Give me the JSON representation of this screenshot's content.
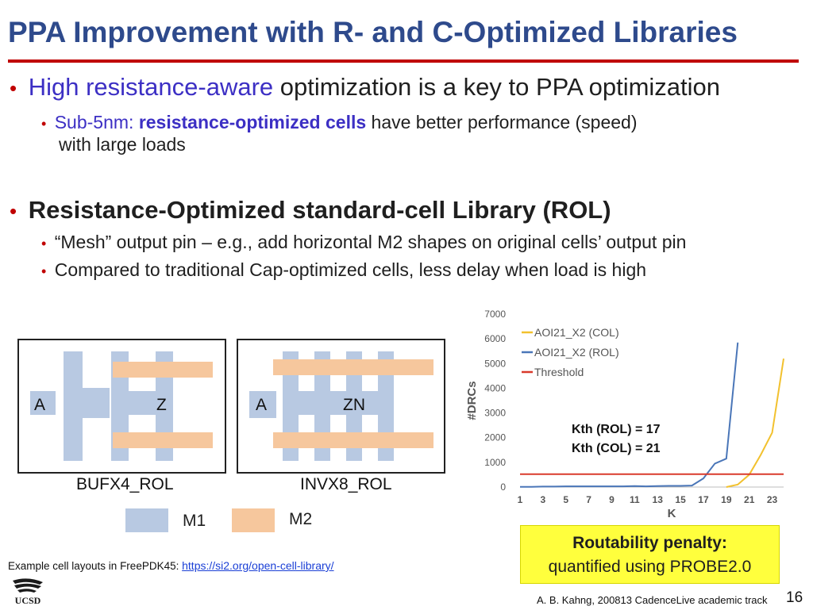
{
  "title": "PPA Improvement with R- and C-Optimized Libraries",
  "bullets": {
    "b1": {
      "highlight": "High resistance-aware",
      "rest": " optimization is a key to PPA optimization"
    },
    "b1_sub": {
      "prefix": "Sub-5nm: ",
      "highlight": "resistance-optimized cells",
      "rest": " have better performance (speed)",
      "line2": "with large loads"
    },
    "b2": {
      "text": "Resistance-Optimized standard-cell Library (ROL)"
    },
    "b2_sub1": "“Mesh” output pin – e.g., add horizontal M2 shapes on original cells’ output pin",
    "b2_sub2": "Compared to traditional Cap-optimized cells, less delay when load is high"
  },
  "bullet_glyph": "•",
  "cells": {
    "left": {
      "pin_in": "A",
      "pin_out": "Z",
      "name": "BUFX4_ROL"
    },
    "right": {
      "pin_in": "A",
      "pin_out": "ZN",
      "name": "INVX8_ROL"
    }
  },
  "legend": {
    "m1": "M1",
    "m2": "M2",
    "m1_color": "#b8c9e2",
    "m2_color": "#f6c79d"
  },
  "chart_data": {
    "type": "line",
    "xlabel": "K",
    "ylabel": "#DRCs",
    "x_ticks": [
      1,
      3,
      5,
      7,
      9,
      11,
      13,
      15,
      17,
      19,
      21,
      23
    ],
    "y_ticks": [
      0,
      1000,
      2000,
      3000,
      4000,
      5000,
      6000,
      7000
    ],
    "ylim": [
      0,
      7000
    ],
    "xlim": [
      1,
      24
    ],
    "series": [
      {
        "name": "AOI21_X2 (COL)",
        "color": "#f2c12e",
        "x": [
          19,
          20,
          21,
          22,
          23,
          24
        ],
        "y": [
          0,
          100,
          500,
          1300,
          2200,
          5200
        ]
      },
      {
        "name": "AOI21_X2 (ROL)",
        "color": "#4a76b8",
        "x": [
          1,
          2,
          3,
          4,
          5,
          6,
          7,
          8,
          9,
          10,
          11,
          12,
          13,
          14,
          15,
          16,
          17,
          18,
          19,
          20
        ],
        "y": [
          10,
          10,
          20,
          20,
          30,
          30,
          30,
          30,
          30,
          30,
          40,
          30,
          40,
          50,
          50,
          60,
          350,
          950,
          1150,
          5850
        ]
      },
      {
        "name": "Threshold",
        "color": "#d93a2b",
        "x": [
          1,
          24
        ],
        "y": [
          520,
          520
        ]
      }
    ],
    "legend_position": "top-left",
    "annotation_lines": [
      "Kth (ROL) = 17",
      "Kth (COL) = 21"
    ]
  },
  "penalty": {
    "line1": "Routability penalty:",
    "line2": "quantified using PROBE2.0",
    "bg": "#ffff3d"
  },
  "footer": {
    "left_text": "Example cell layouts in FreePDK45:",
    "link": "https://si2.org/open-cell-library/",
    "logo_text": "UCSD",
    "right_text": "A. B. Kahng, 200813 CadenceLive academic track",
    "page": "16"
  },
  "colors": {
    "title": "#2e4a8c",
    "accent_red": "#c00000",
    "highlight": "#3c2fc4"
  }
}
